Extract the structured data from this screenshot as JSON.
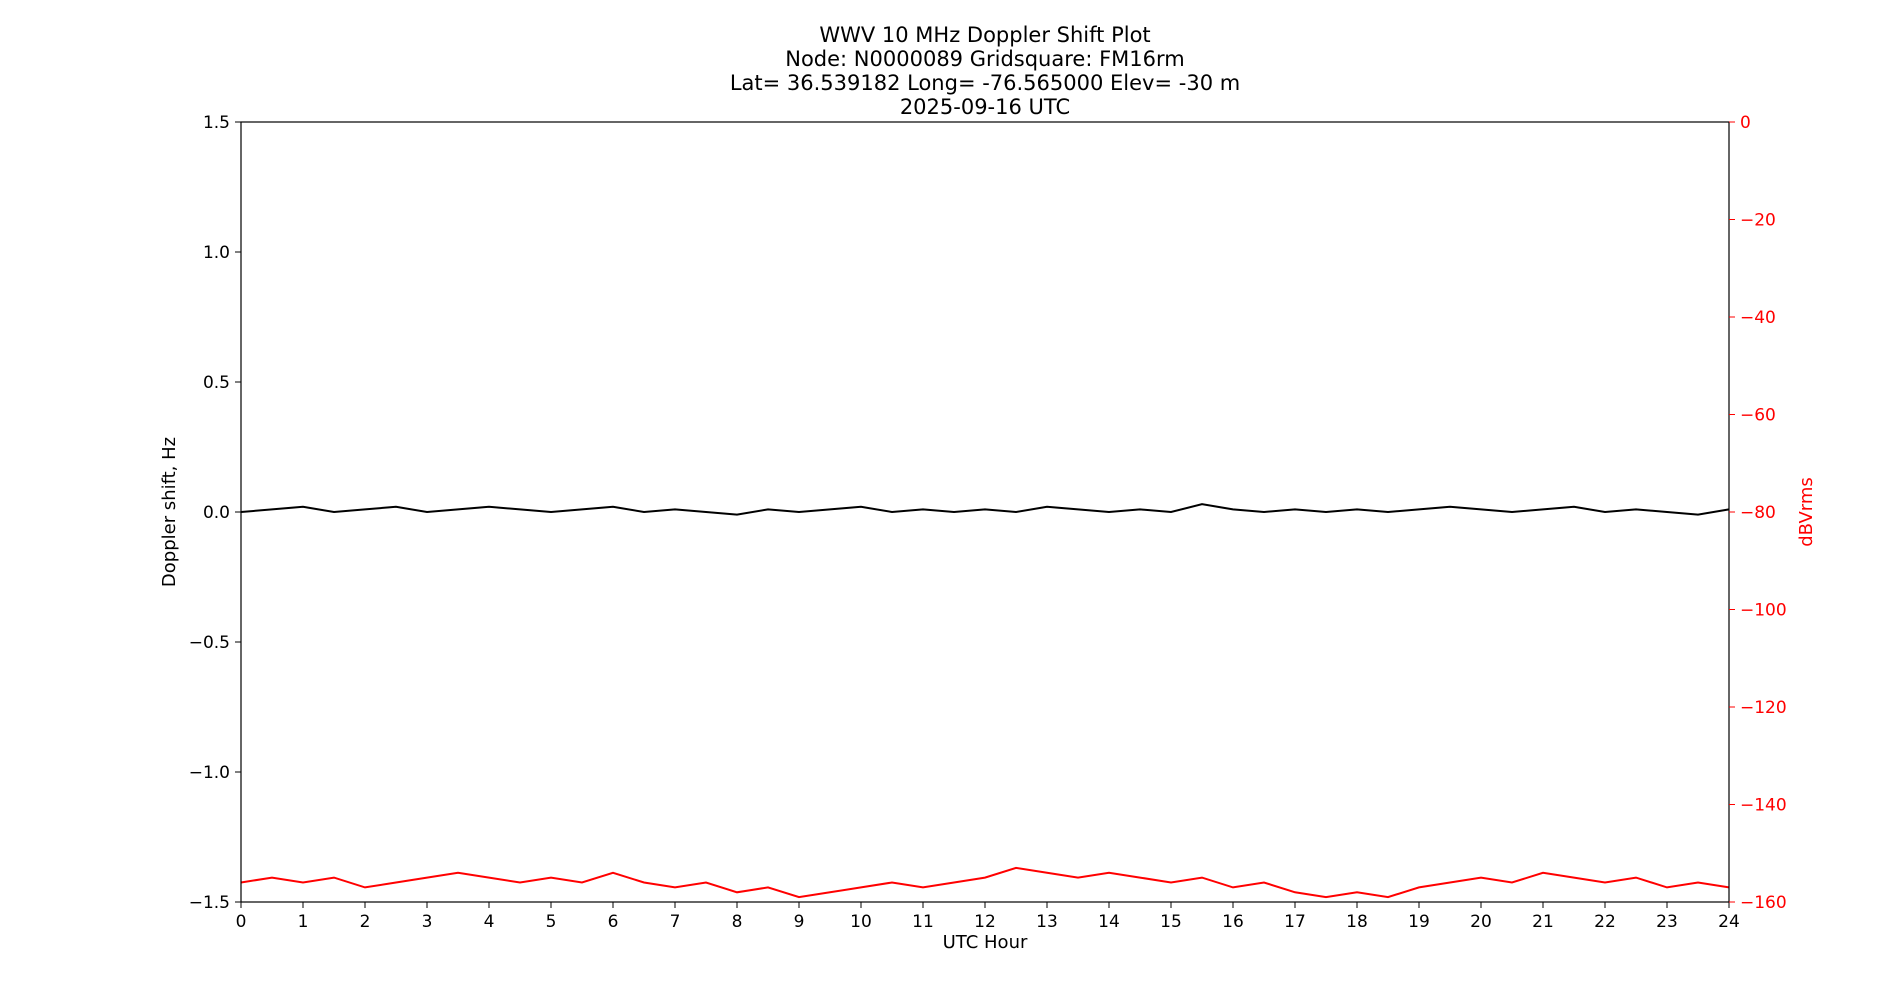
{
  "chart_data": {
    "type": "line",
    "title_lines": [
      "WWV 10 MHz Doppler Shift Plot",
      "Node:  N0000089     Gridsquare:  FM16rm",
      "Lat= 36.539182    Long= -76.565000    Elev= -30 m",
      "2025-09-16  UTC"
    ],
    "xlabel": "UTC Hour",
    "ylabel": "Doppler shift, Hz",
    "y2label": "dBVrms",
    "xlim": [
      0,
      24
    ],
    "ylim": [
      -1.5,
      1.5
    ],
    "y2lim": [
      -160,
      0
    ],
    "y2_inverted": true,
    "xticks": [
      "0",
      "1",
      "2",
      "3",
      "4",
      "5",
      "6",
      "7",
      "8",
      "9",
      "10",
      "11",
      "12",
      "13",
      "14",
      "15",
      "16",
      "17",
      "18",
      "19",
      "20",
      "21",
      "22",
      "23",
      "24"
    ],
    "yticks": [
      "1.5",
      "1.0",
      "0.5",
      "0.0",
      "−0.5",
      "−1.0",
      "−1.5"
    ],
    "y2ticks": [
      "0",
      "−20",
      "−40",
      "−60",
      "−80",
      "−100",
      "−120",
      "−140",
      "−160"
    ],
    "grid": false,
    "colors": {
      "doppler": "#000000",
      "power": "#ff0000",
      "y2axis": "#ff0000"
    },
    "series": [
      {
        "key": "doppler",
        "axis": "left",
        "x": [
          0,
          0.5,
          1,
          1.5,
          2,
          2.5,
          3,
          3.5,
          4,
          4.5,
          5,
          5.5,
          6,
          6.5,
          7,
          7.5,
          8,
          8.5,
          9,
          9.5,
          10,
          10.5,
          11,
          11.5,
          12,
          12.5,
          13,
          13.5,
          14,
          14.5,
          15,
          15.5,
          16,
          16.5,
          17,
          17.5,
          18,
          18.5,
          19,
          19.5,
          20,
          20.5,
          21,
          21.5,
          22,
          22.5,
          23,
          23.5,
          24
        ],
        "y": [
          0.0,
          0.01,
          0.02,
          0.0,
          0.01,
          0.02,
          0.0,
          0.01,
          0.02,
          0.01,
          0.0,
          0.01,
          0.02,
          0.0,
          0.01,
          0.0,
          -0.01,
          0.01,
          0.0,
          0.01,
          0.02,
          0.0,
          0.01,
          0.0,
          0.01,
          0.0,
          0.02,
          0.01,
          0.0,
          0.01,
          0.0,
          0.03,
          0.01,
          0.0,
          0.01,
          0.0,
          0.01,
          0.0,
          0.01,
          0.02,
          0.01,
          0.0,
          0.01,
          0.02,
          0.0,
          0.01,
          0.0,
          -0.01,
          0.01
        ]
      },
      {
        "key": "power",
        "axis": "right",
        "x": [
          0,
          0.5,
          1,
          1.5,
          2,
          2.5,
          3,
          3.5,
          4,
          4.5,
          5,
          5.5,
          6,
          6.5,
          7,
          7.5,
          8,
          8.5,
          9,
          9.5,
          10,
          10.5,
          11,
          11.5,
          12,
          12.5,
          13,
          13.5,
          14,
          14.5,
          15,
          15.5,
          16,
          16.5,
          17,
          17.5,
          18,
          18.5,
          19,
          19.5,
          20,
          20.5,
          21,
          21.5,
          22,
          22.5,
          23,
          23.5,
          24
        ],
        "y": [
          -156,
          -155,
          -156,
          -155,
          -157,
          -156,
          -155,
          -154,
          -155,
          -156,
          -155,
          -156,
          -154,
          -156,
          -157,
          -156,
          -158,
          -157,
          -159,
          -158,
          -157,
          -156,
          -157,
          -156,
          -155,
          -153,
          -154,
          -155,
          -154,
          -155,
          -156,
          -155,
          -157,
          -156,
          -158,
          -159,
          -158,
          -159,
          -157,
          -156,
          -155,
          -156,
          -154,
          -155,
          -156,
          -155,
          -157,
          -156,
          -157
        ]
      }
    ]
  }
}
